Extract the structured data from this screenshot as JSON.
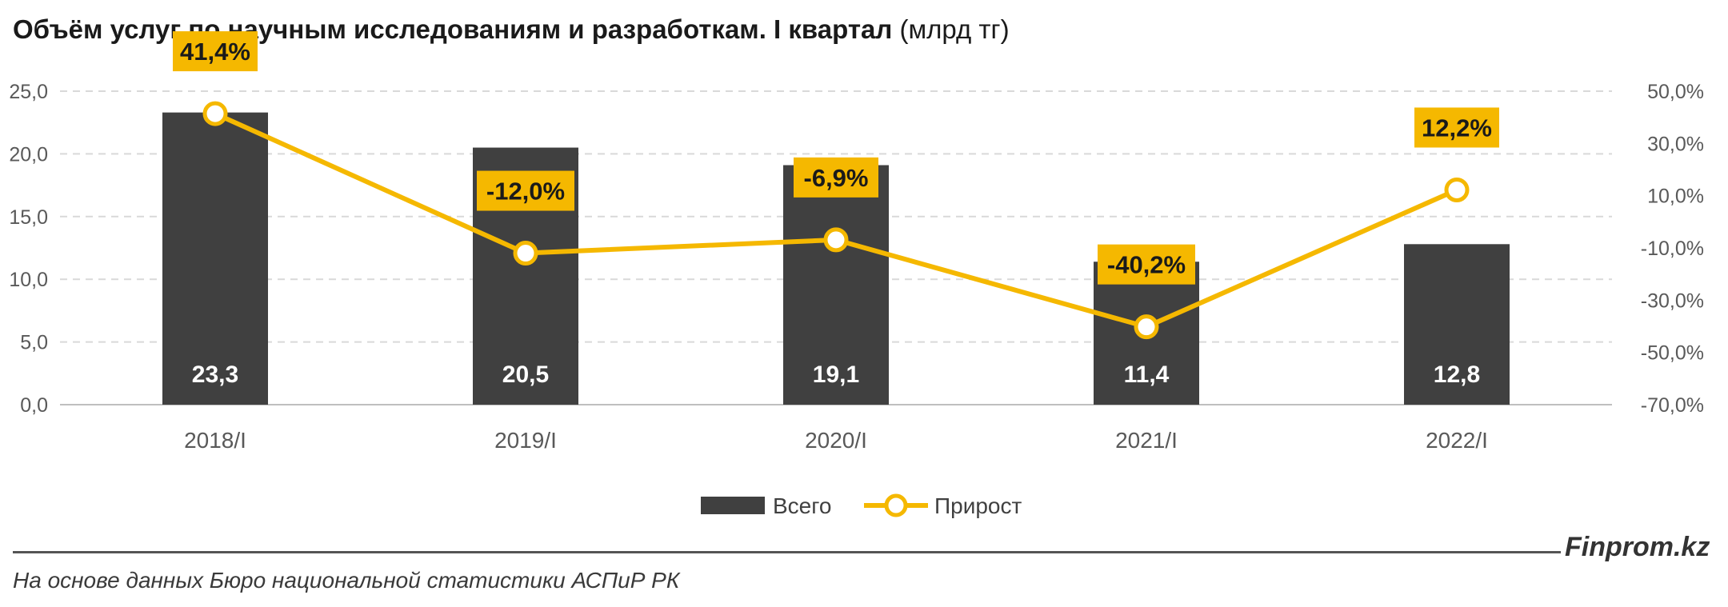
{
  "title": {
    "main": "Объём услуг по научным исследованиям и разработкам. I квартал",
    "unit": "(млрд тг)"
  },
  "chart_data": {
    "type": "bar",
    "categories": [
      "2018/I",
      "2019/I",
      "2020/I",
      "2021/I",
      "2022/I"
    ],
    "series": [
      {
        "name": "Всего",
        "kind": "bar",
        "axis": "left",
        "values": [
          23.3,
          20.5,
          19.1,
          11.4,
          12.8
        ],
        "labels": [
          "23,3",
          "20,5",
          "19,1",
          "11,4",
          "12,8"
        ],
        "color": "#404040"
      },
      {
        "name": "Прирост",
        "kind": "line",
        "axis": "right",
        "values": [
          41.4,
          -12.0,
          -6.9,
          -40.2,
          12.2
        ],
        "labels": [
          "41,4%",
          "-12,0%",
          "-6,9%",
          "-40,2%",
          "12,2%"
        ],
        "color": "#f5b800"
      }
    ],
    "y_left": {
      "min": 0,
      "max": 25,
      "ticks": [
        "0,0",
        "5,0",
        "10,0",
        "15,0",
        "20,0",
        "25,0"
      ]
    },
    "y_right": {
      "min": -70,
      "max": 50,
      "ticks": [
        "-70,0%",
        "-50,0%",
        "-30,0%",
        "-10,0%",
        "10,0%",
        "30,0%",
        "50,0%"
      ]
    },
    "grid": "dashed-horizontal",
    "legend": "bottom-center"
  },
  "footer": {
    "brand": "Finprom.kz",
    "source": "На основе данных Бюро национальной статистики АСПиР РК"
  }
}
